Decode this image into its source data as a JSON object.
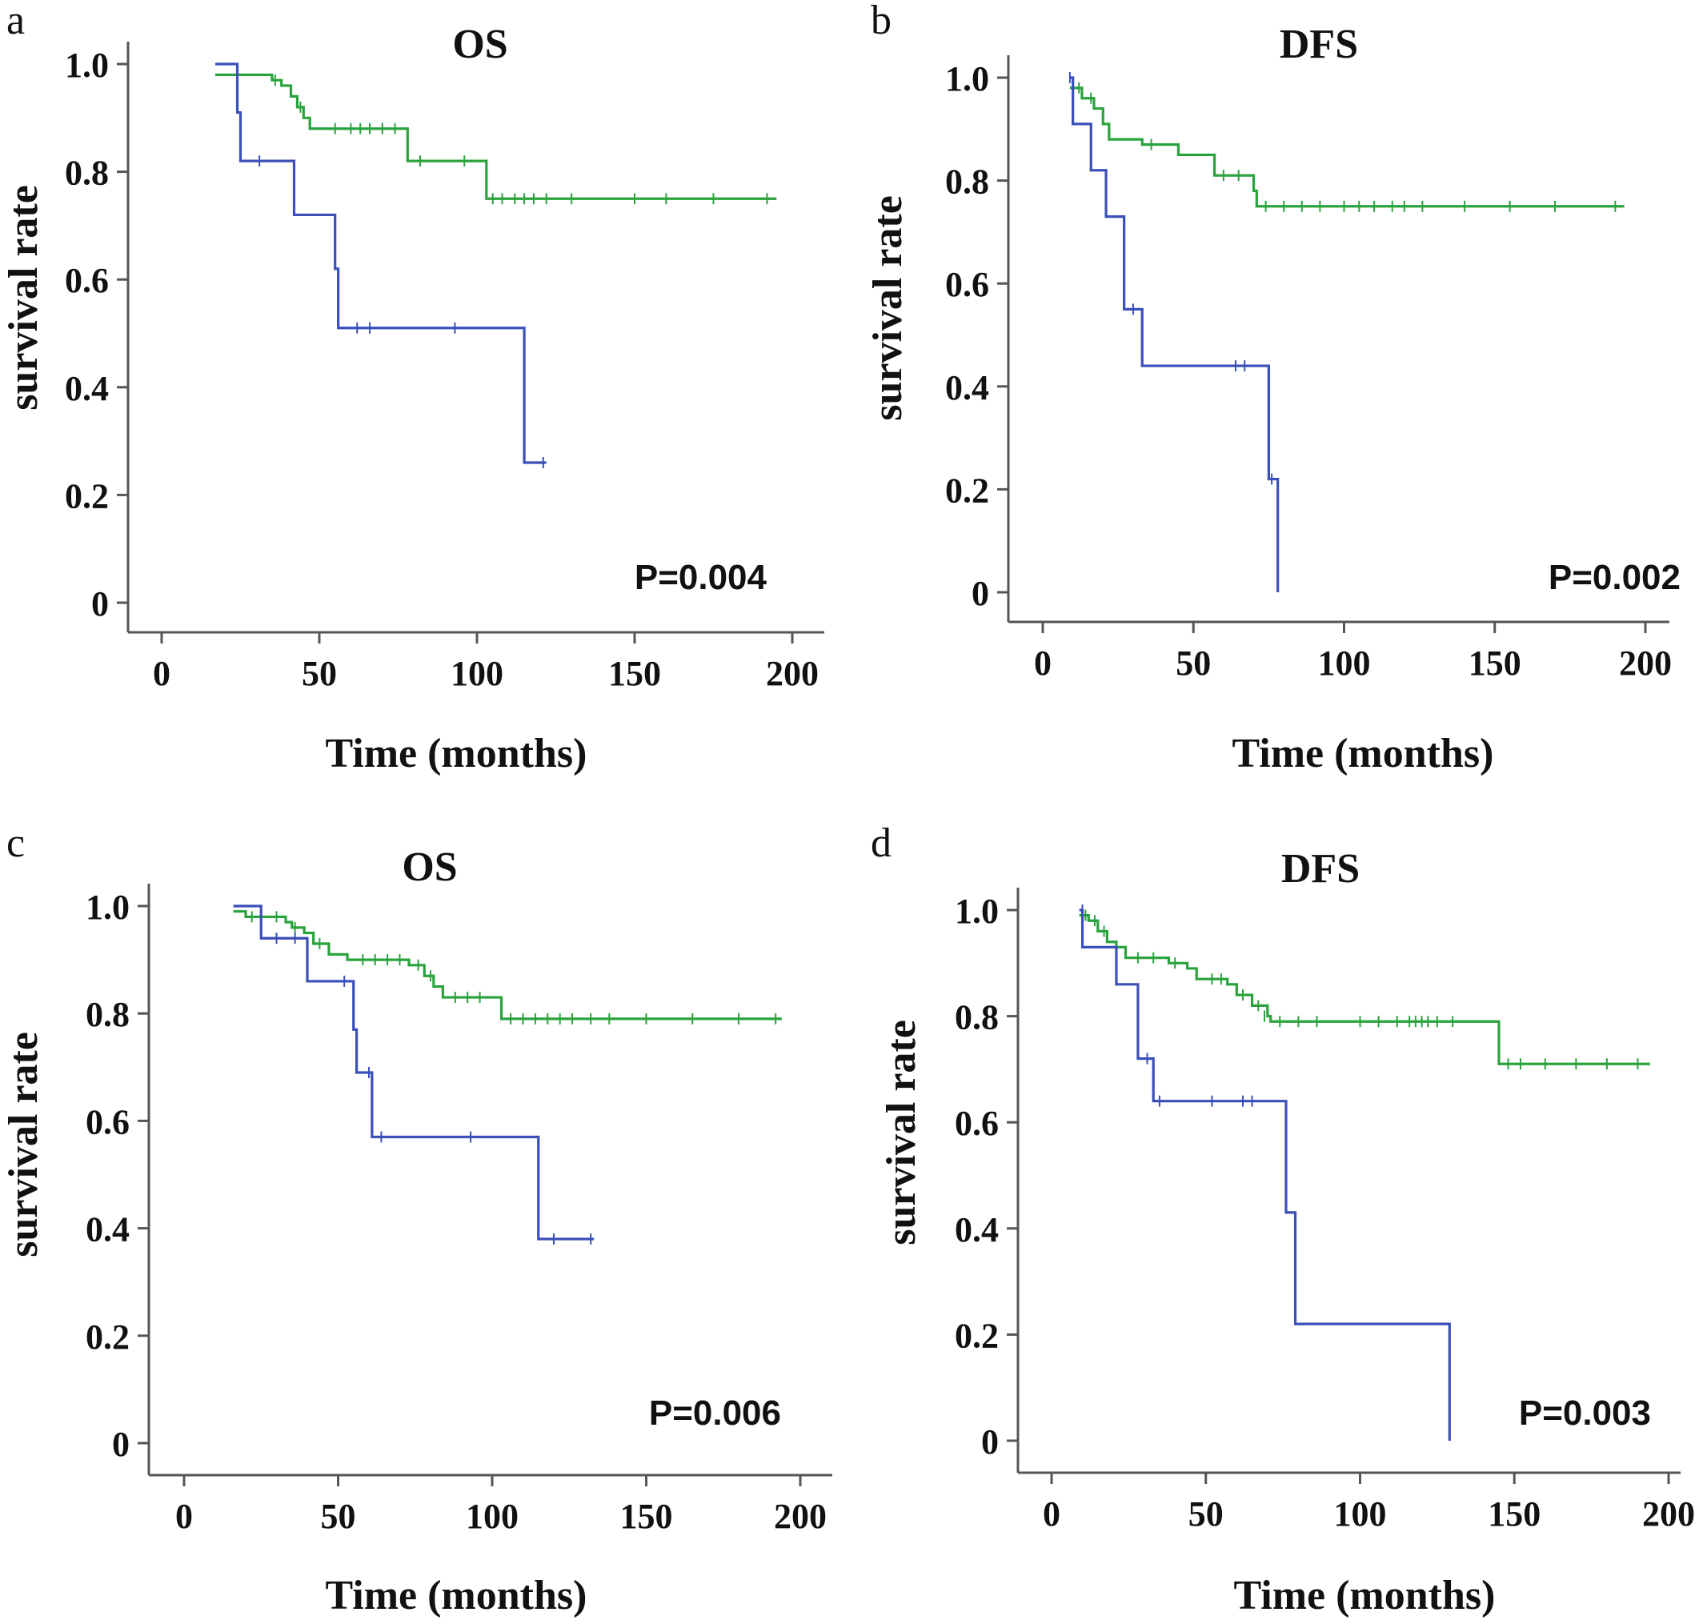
{
  "colors": {
    "green_series": "#2aa33c",
    "blue_series": "#3a4fb8",
    "axis": "#555555",
    "text": "#111111"
  },
  "chart_data": [
    {
      "panel": "a",
      "type": "line",
      "title": "OS",
      "xlabel": "Time (months)",
      "ylabel": "survival rate",
      "xlim": [
        0,
        200
      ],
      "ylim": [
        0,
        1.0
      ],
      "xticks": [
        "0",
        "50",
        "100",
        "150",
        "200"
      ],
      "yticks": [
        "0",
        "0.2",
        "0.4",
        "0.6",
        "0.8",
        "1.0"
      ],
      "annotation": "P=0.004",
      "series": [
        {
          "color": "green",
          "steps": [
            [
              17,
              0.98
            ],
            [
              35,
              0.97
            ],
            [
              38,
              0.96
            ],
            [
              41,
              0.94
            ],
            [
              43,
              0.92
            ],
            [
              45,
              0.9
            ],
            [
              47,
              0.88
            ],
            [
              78,
              0.82
            ],
            [
              103,
              0.75
            ],
            [
              195,
              0.75
            ]
          ],
          "censored": [
            [
              36,
              0.97
            ],
            [
              44,
              0.92
            ],
            [
              55,
              0.88
            ],
            [
              60,
              0.88
            ],
            [
              63,
              0.88
            ],
            [
              66,
              0.88
            ],
            [
              70,
              0.88
            ],
            [
              74,
              0.88
            ],
            [
              82,
              0.82
            ],
            [
              96,
              0.82
            ],
            [
              105,
              0.75
            ],
            [
              108,
              0.75
            ],
            [
              112,
              0.75
            ],
            [
              115,
              0.75
            ],
            [
              118,
              0.75
            ],
            [
              122,
              0.75
            ],
            [
              130,
              0.75
            ],
            [
              150,
              0.75
            ],
            [
              160,
              0.75
            ],
            [
              175,
              0.75
            ],
            [
              192,
              0.75
            ]
          ]
        },
        {
          "color": "blue",
          "steps": [
            [
              17,
              1.0
            ],
            [
              24,
              0.91
            ],
            [
              25,
              0.82
            ],
            [
              42,
              0.72
            ],
            [
              55,
              0.62
            ],
            [
              56,
              0.51
            ],
            [
              115,
              0.26
            ],
            [
              122,
              0.26
            ]
          ],
          "censored": [
            [
              31,
              0.82
            ],
            [
              62,
              0.51
            ],
            [
              66,
              0.51
            ],
            [
              93,
              0.51
            ],
            [
              121,
              0.26
            ]
          ]
        }
      ]
    },
    {
      "panel": "b",
      "type": "line",
      "title": "DFS",
      "xlabel": "Time (months)",
      "ylabel": "survival rate",
      "xlim": [
        0,
        200
      ],
      "ylim": [
        0,
        1.0
      ],
      "xticks": [
        "0",
        "50",
        "100",
        "150",
        "200"
      ],
      "yticks": [
        "0",
        "0.2",
        "0.4",
        "0.6",
        "0.8",
        "1.0"
      ],
      "annotation": "P=0.002",
      "series": [
        {
          "color": "green",
          "steps": [
            [
              9,
              0.98
            ],
            [
              13,
              0.96
            ],
            [
              17,
              0.94
            ],
            [
              20,
              0.91
            ],
            [
              22,
              0.88
            ],
            [
              33,
              0.87
            ],
            [
              45,
              0.85
            ],
            [
              57,
              0.81
            ],
            [
              70,
              0.78
            ],
            [
              71,
              0.75
            ],
            [
              193,
              0.75
            ]
          ],
          "censored": [
            [
              12,
              0.98
            ],
            [
              16,
              0.96
            ],
            [
              36,
              0.87
            ],
            [
              60,
              0.81
            ],
            [
              65,
              0.81
            ],
            [
              74,
              0.75
            ],
            [
              80,
              0.75
            ],
            [
              86,
              0.75
            ],
            [
              92,
              0.75
            ],
            [
              100,
              0.75
            ],
            [
              105,
              0.75
            ],
            [
              110,
              0.75
            ],
            [
              116,
              0.75
            ],
            [
              120,
              0.75
            ],
            [
              126,
              0.75
            ],
            [
              140,
              0.75
            ],
            [
              155,
              0.75
            ],
            [
              170,
              0.75
            ],
            [
              190,
              0.75
            ]
          ]
        },
        {
          "color": "blue",
          "steps": [
            [
              9,
              1.0
            ],
            [
              10,
              0.91
            ],
            [
              16,
              0.82
            ],
            [
              21,
              0.73
            ],
            [
              27,
              0.55
            ],
            [
              33,
              0.44
            ],
            [
              75,
              0.22
            ],
            [
              78,
              0.09
            ],
            [
              78,
              0.0
            ]
          ],
          "censored": [
            [
              9,
              1.0
            ],
            [
              30,
              0.55
            ],
            [
              64,
              0.44
            ],
            [
              67,
              0.44
            ],
            [
              76,
              0.22
            ]
          ]
        }
      ]
    },
    {
      "panel": "c",
      "type": "line",
      "title": "OS",
      "xlabel": "Time (months)",
      "ylabel": "survival rate",
      "xlim": [
        0,
        200
      ],
      "ylim": [
        0,
        1.0
      ],
      "xticks": [
        "0",
        "50",
        "100",
        "150",
        "200"
      ],
      "yticks": [
        "0",
        "0.2",
        "0.4",
        "0.6",
        "0.8",
        "1.0"
      ],
      "annotation": "P=0.006",
      "series": [
        {
          "color": "green",
          "steps": [
            [
              16,
              0.99
            ],
            [
              20,
              0.98
            ],
            [
              33,
              0.97
            ],
            [
              35,
              0.96
            ],
            [
              39,
              0.95
            ],
            [
              42,
              0.93
            ],
            [
              47,
              0.91
            ],
            [
              53,
              0.9
            ],
            [
              73,
              0.89
            ],
            [
              78,
              0.87
            ],
            [
              81,
              0.85
            ],
            [
              84,
              0.83
            ],
            [
              103,
              0.79
            ],
            [
              194,
              0.79
            ]
          ],
          "censored": [
            [
              22,
              0.98
            ],
            [
              30,
              0.98
            ],
            [
              36,
              0.96
            ],
            [
              44,
              0.93
            ],
            [
              58,
              0.9
            ],
            [
              62,
              0.9
            ],
            [
              66,
              0.9
            ],
            [
              70,
              0.9
            ],
            [
              76,
              0.89
            ],
            [
              80,
              0.87
            ],
            [
              88,
              0.83
            ],
            [
              92,
              0.83
            ],
            [
              96,
              0.83
            ],
            [
              106,
              0.79
            ],
            [
              110,
              0.79
            ],
            [
              114,
              0.79
            ],
            [
              118,
              0.79
            ],
            [
              122,
              0.79
            ],
            [
              126,
              0.79
            ],
            [
              132,
              0.79
            ],
            [
              138,
              0.79
            ],
            [
              150,
              0.79
            ],
            [
              165,
              0.79
            ],
            [
              180,
              0.79
            ],
            [
              192,
              0.79
            ]
          ]
        },
        {
          "color": "blue",
          "steps": [
            [
              16,
              1.0
            ],
            [
              25,
              0.94
            ],
            [
              40,
              0.86
            ],
            [
              55,
              0.77
            ],
            [
              56,
              0.69
            ],
            [
              61,
              0.57
            ],
            [
              115,
              0.38
            ],
            [
              133,
              0.38
            ]
          ],
          "censored": [
            [
              30,
              0.94
            ],
            [
              36,
              0.94
            ],
            [
              52,
              0.86
            ],
            [
              60,
              0.69
            ],
            [
              64,
              0.57
            ],
            [
              93,
              0.57
            ],
            [
              120,
              0.38
            ],
            [
              132,
              0.38
            ]
          ]
        }
      ]
    },
    {
      "panel": "d",
      "type": "line",
      "title": "DFS",
      "xlabel": "Time (months)",
      "ylabel": "survival rate",
      "xlim": [
        0,
        200
      ],
      "ylim": [
        0,
        1.0
      ],
      "xticks": [
        "0",
        "50",
        "100",
        "150",
        "200"
      ],
      "yticks": [
        "0",
        "0.2",
        "0.4",
        "0.6",
        "0.8",
        "1.0"
      ],
      "annotation": "P=0.003",
      "series": [
        {
          "color": "green",
          "steps": [
            [
              9,
              0.99
            ],
            [
              12,
              0.98
            ],
            [
              15,
              0.96
            ],
            [
              18,
              0.94
            ],
            [
              21,
              0.93
            ],
            [
              24,
              0.91
            ],
            [
              38,
              0.9
            ],
            [
              44,
              0.89
            ],
            [
              47,
              0.87
            ],
            [
              57,
              0.86
            ],
            [
              60,
              0.84
            ],
            [
              65,
              0.82
            ],
            [
              70,
              0.8
            ],
            [
              71,
              0.79
            ],
            [
              145,
              0.71
            ],
            [
              194,
              0.71
            ]
          ],
          "censored": [
            [
              11,
              0.99
            ],
            [
              14,
              0.98
            ],
            [
              17,
              0.96
            ],
            [
              28,
              0.91
            ],
            [
              33,
              0.91
            ],
            [
              40,
              0.9
            ],
            [
              52,
              0.87
            ],
            [
              55,
              0.87
            ],
            [
              62,
              0.84
            ],
            [
              67,
              0.82
            ],
            [
              69,
              0.8
            ],
            [
              74,
              0.79
            ],
            [
              80,
              0.79
            ],
            [
              86,
              0.79
            ],
            [
              100,
              0.79
            ],
            [
              106,
              0.79
            ],
            [
              112,
              0.79
            ],
            [
              116,
              0.79
            ],
            [
              118,
              0.79
            ],
            [
              120,
              0.79
            ],
            [
              122,
              0.79
            ],
            [
              125,
              0.79
            ],
            [
              130,
              0.79
            ],
            [
              148,
              0.71
            ],
            [
              152,
              0.71
            ],
            [
              160,
              0.71
            ],
            [
              170,
              0.71
            ],
            [
              180,
              0.71
            ],
            [
              190,
              0.71
            ]
          ]
        },
        {
          "color": "blue",
          "steps": [
            [
              9,
              1.0
            ],
            [
              10,
              0.93
            ],
            [
              21,
              0.86
            ],
            [
              28,
              0.72
            ],
            [
              33,
              0.64
            ],
            [
              76,
              0.43
            ],
            [
              79,
              0.22
            ],
            [
              129,
              0.1
            ],
            [
              129,
              0.0
            ]
          ],
          "censored": [
            [
              10,
              1.0
            ],
            [
              31,
              0.72
            ],
            [
              35,
              0.64
            ],
            [
              52,
              0.64
            ],
            [
              62,
              0.64
            ],
            [
              65,
              0.64
            ]
          ]
        }
      ]
    }
  ]
}
